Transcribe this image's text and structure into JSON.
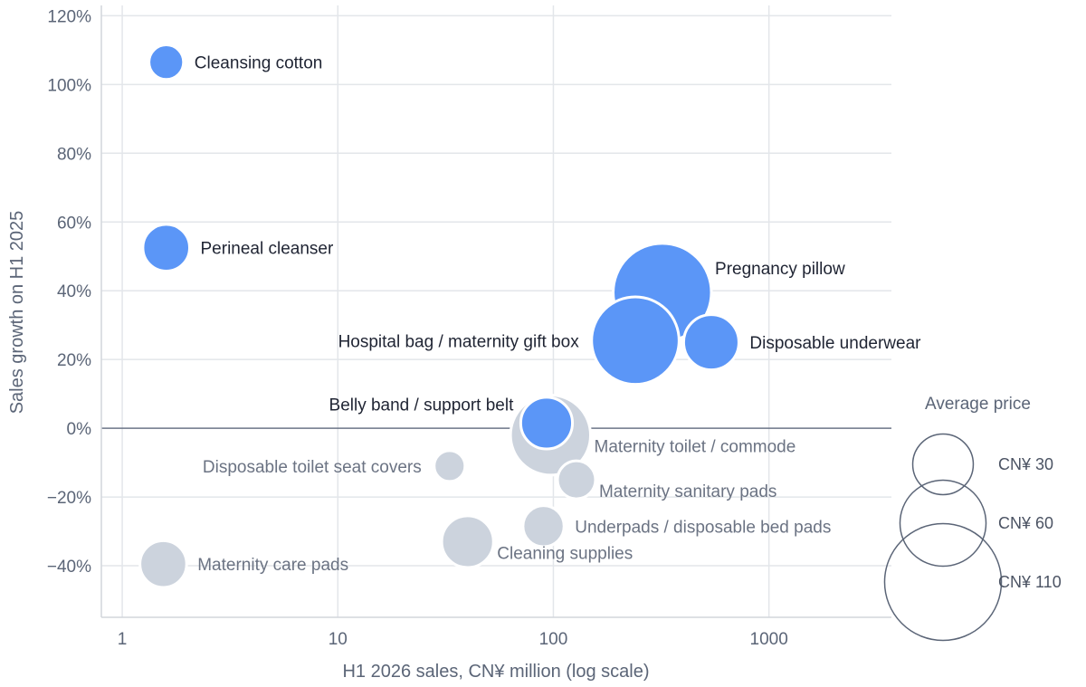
{
  "chart_data": {
    "type": "scatter",
    "subtype": "bubble",
    "xlabel": "H1 2026 sales, CN¥ million (log scale)",
    "ylabel": "Sales growth on H1 2025",
    "x_scale": "log",
    "xlim": [
      0.8,
      3700
    ],
    "ylim": [
      -55,
      123
    ],
    "x_ticks": [
      1,
      10,
      100,
      1000
    ],
    "x_tick_labels": [
      "1",
      "10",
      "100",
      "1000"
    ],
    "y_ticks": [
      120,
      100,
      80,
      60,
      40,
      20,
      0,
      -20,
      -40
    ],
    "y_tick_labels": [
      "120%",
      "100%",
      "80%",
      "60%",
      "40%",
      "20%",
      "0%",
      "−20%",
      "−40%"
    ],
    "grid": true,
    "colors": {
      "positive": "#5b96f7",
      "negative": "#ccd3dd",
      "grid": "#e3e6ea",
      "zero_line": "#6b7588"
    },
    "points": [
      {
        "label": "Cleansing cotton",
        "x": 1.6,
        "y": 106.5,
        "price": 10,
        "growth": "positive",
        "label_side": "right"
      },
      {
        "label": "Perineal cleanser",
        "x": 1.6,
        "y": 52.5,
        "price": 18,
        "growth": "positive",
        "label_side": "right"
      },
      {
        "label": "Pregnancy pillow",
        "x": 320,
        "y": 39.5,
        "price": 78,
        "growth": "positive",
        "label_side": "upper-right"
      },
      {
        "label": "Hospital bag / maternity gift box",
        "x": 240,
        "y": 25.5,
        "price": 62,
        "growth": "positive",
        "label_side": "left"
      },
      {
        "label": "Disposable underwear",
        "x": 540,
        "y": 25,
        "price": 25,
        "growth": "positive",
        "label_side": "right"
      },
      {
        "label": "Belly band / support belt",
        "x": 93,
        "y": 1.5,
        "price": 22,
        "growth": "positive",
        "label_side": "upper-left"
      },
      {
        "label": "Maternity toilet / commode",
        "x": 97,
        "y": -2,
        "price": 52,
        "growth": "negative",
        "label_side": "lower-right"
      },
      {
        "label": "Disposable toilet seat covers",
        "x": 33,
        "y": -11,
        "price": 8,
        "growth": "negative",
        "label_side": "left"
      },
      {
        "label": "Maternity sanitary pads",
        "x": 128,
        "y": -15,
        "price": 12,
        "growth": "negative",
        "label_side": "lower-right"
      },
      {
        "label": "Underpads / disposable bed pads",
        "x": 90,
        "y": -28.5,
        "price": 14,
        "growth": "negative",
        "label_side": "right"
      },
      {
        "label": "Cleaning supplies",
        "x": 40,
        "y": -33,
        "price": 22,
        "growth": "negative",
        "label_side": "lower-right"
      },
      {
        "label": "Maternity care pads",
        "x": 1.55,
        "y": -39.5,
        "price": 18,
        "growth": "negative",
        "label_side": "right"
      }
    ],
    "legend": {
      "title": "Average price",
      "placement": "right",
      "items": [
        {
          "label": "CN¥ 30",
          "price": 30
        },
        {
          "label": "CN¥ 60",
          "price": 60
        },
        {
          "label": "CN¥ 110",
          "price": 110
        }
      ]
    }
  }
}
